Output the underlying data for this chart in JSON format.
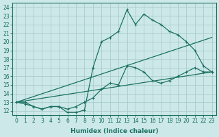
{
  "xlabel": "Humidex (Indice chaleur)",
  "ylabel": "",
  "xlim": [
    -0.5,
    23.5
  ],
  "ylim": [
    11.5,
    24.5
  ],
  "xticks": [
    0,
    1,
    2,
    3,
    4,
    5,
    6,
    7,
    8,
    9,
    10,
    11,
    12,
    13,
    14,
    15,
    16,
    17,
    18,
    19,
    20,
    21,
    22,
    23
  ],
  "yticks": [
    12,
    13,
    14,
    15,
    16,
    17,
    18,
    19,
    20,
    21,
    22,
    23,
    24
  ],
  "bg_color": "#cce8e8",
  "grid_color": "#aacccc",
  "line_color": "#1a7060",
  "line1_x": [
    0,
    1,
    2,
    3,
    4,
    5,
    6,
    7,
    8,
    9,
    10,
    11,
    12,
    13,
    14,
    15,
    16,
    17,
    18,
    19,
    20,
    21,
    22,
    23
  ],
  "line1_y": [
    13.0,
    12.8,
    12.5,
    12.2,
    12.5,
    12.5,
    11.8,
    11.8,
    12.1,
    17.0,
    20.0,
    20.5,
    21.2,
    23.7,
    22.0,
    23.2,
    22.5,
    22.0,
    21.2,
    20.8,
    20.0,
    19.0,
    17.2,
    16.5
  ],
  "line2_x": [
    0,
    1,
    2,
    3,
    4,
    5,
    6,
    7,
    8,
    9,
    10,
    11,
    12,
    13,
    14,
    15,
    16,
    17,
    18,
    19,
    20,
    21,
    22,
    23
  ],
  "line2_y": [
    13.0,
    13.0,
    12.5,
    12.2,
    12.5,
    12.5,
    12.2,
    12.5,
    13.0,
    13.5,
    14.5,
    15.2,
    15.0,
    17.2,
    17.0,
    16.5,
    15.5,
    15.2,
    15.5,
    16.0,
    16.5,
    17.0,
    16.5,
    16.5
  ],
  "line3_x": [
    0,
    23
  ],
  "line3_y": [
    13.0,
    20.5
  ],
  "line4_x": [
    0,
    23
  ],
  "line4_y": [
    13.0,
    16.5
  ]
}
